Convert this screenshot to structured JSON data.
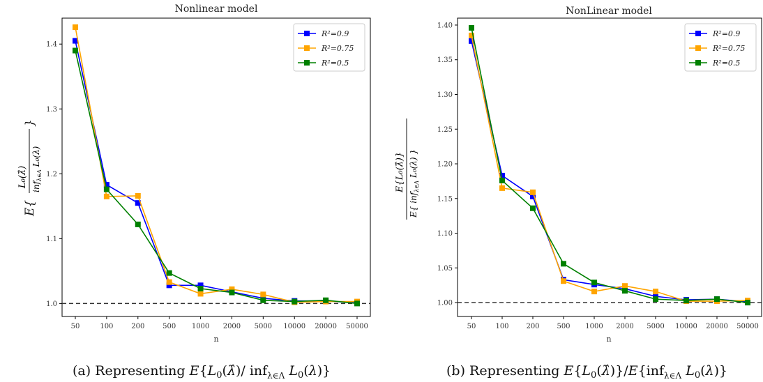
{
  "chart_data": [
    {
      "type": "line",
      "title": "Nonlinear model",
      "xlabel": "n",
      "ylabel": "E{ L0(λ̂) / inf_{λ∈Λ} L0(λ) }",
      "categories": [
        "50",
        "100",
        "200",
        "500",
        "1000",
        "2000",
        "5000",
        "10000",
        "20000",
        "50000"
      ],
      "ylim": [
        0.98,
        1.44
      ],
      "yticks": [
        "1.0",
        "1.1",
        "1.2",
        "1.3",
        "1.4"
      ],
      "reference_line": 1.0,
      "legend_position": "top-right",
      "series": [
        {
          "name": "R²=0.9",
          "color": "#0000ff",
          "values": [
            1.405,
            1.183,
            1.155,
            1.028,
            1.028,
            1.018,
            1.008,
            1.004,
            1.004,
            1.001
          ]
        },
        {
          "name": "R²=0.75",
          "color": "#ffa500",
          "values": [
            1.426,
            1.165,
            1.166,
            1.033,
            1.015,
            1.022,
            1.014,
            1.002,
            1.003,
            1.003
          ]
        },
        {
          "name": "R²=0.5",
          "color": "#008000",
          "values": [
            1.39,
            1.176,
            1.122,
            1.047,
            1.023,
            1.017,
            1.005,
            1.003,
            1.005,
            1.0
          ]
        }
      ],
      "caption": "(a) Representing E{L0(λ̂)/inf_{λ∈Λ} L0(λ)}"
    },
    {
      "type": "line",
      "title": "NonLinear model",
      "xlabel": "n",
      "ylabel": "E{L0(λ̂)} / E{inf_{λ∈Λ} L0(λ)}",
      "categories": [
        "50",
        "100",
        "200",
        "500",
        "1000",
        "2000",
        "5000",
        "10000",
        "20000",
        "50000"
      ],
      "ylim": [
        0.98,
        1.41
      ],
      "yticks": [
        "1.00",
        "1.05",
        "1.10",
        "1.15",
        "1.20",
        "1.25",
        "1.30",
        "1.35",
        "1.40"
      ],
      "reference_line": 1.0,
      "legend_position": "top-right",
      "series": [
        {
          "name": "R²=0.9",
          "color": "#0000ff",
          "values": [
            1.377,
            1.183,
            1.153,
            1.033,
            1.026,
            1.02,
            1.009,
            1.004,
            1.005,
            1.001
          ]
        },
        {
          "name": "R²=0.75",
          "color": "#ffa500",
          "values": [
            1.385,
            1.165,
            1.159,
            1.031,
            1.016,
            1.024,
            1.016,
            1.002,
            1.002,
            1.003
          ]
        },
        {
          "name": "R²=0.5",
          "color": "#008000",
          "values": [
            1.396,
            1.176,
            1.136,
            1.056,
            1.029,
            1.017,
            1.005,
            1.003,
            1.005,
            1.0
          ]
        }
      ],
      "caption": "(b) Representing E{L0(λ̂)}/E{inf_{λ∈Λ} L0(λ)}"
    }
  ]
}
